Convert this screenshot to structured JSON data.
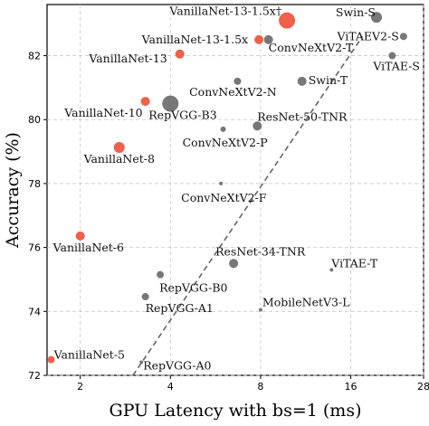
{
  "chart_data": {
    "type": "scatter",
    "xlabel": "GPU Latency with bs=1 (ms)",
    "ylabel": "Accuracy (%)",
    "x_scale": "log2",
    "xlim": [
      1.55,
      28
    ],
    "ylim": [
      72,
      83.6
    ],
    "xticks": [
      2,
      4,
      8,
      16,
      28
    ],
    "yticks": [
      72,
      74,
      76,
      78,
      80,
      82
    ],
    "grid": true,
    "colors": {
      "vanillanet": "#f0604a",
      "other": "#777777",
      "trend": "#666666"
    },
    "trend_line": {
      "x": [
        3.0,
        17.5
      ],
      "y": [
        72.0,
        82.6
      ]
    },
    "points": [
      {
        "label": "VanillaNet-13-1.5x†",
        "x": 9.8,
        "y": 83.1,
        "group": "vanillanet",
        "r": 9
      },
      {
        "label": "VanillaNet-13-1.5x",
        "x": 7.9,
        "y": 82.5,
        "group": "vanillanet",
        "r": 5
      },
      {
        "label": "VanillaNet-13",
        "x": 4.3,
        "y": 82.05,
        "group": "vanillanet",
        "r": 5
      },
      {
        "label": "VanillaNet-10",
        "x": 3.3,
        "y": 80.57,
        "group": "vanillanet",
        "r": 5
      },
      {
        "label": "VanillaNet-8",
        "x": 2.7,
        "y": 79.13,
        "group": "vanillanet",
        "r": 6
      },
      {
        "label": "VanillaNet-6",
        "x": 2.0,
        "y": 76.36,
        "group": "vanillanet",
        "r": 5
      },
      {
        "label": "VanillaNet-5",
        "x": 1.6,
        "y": 72.49,
        "group": "vanillanet",
        "r": 4
      },
      {
        "label": "Swin-S",
        "x": 19.5,
        "y": 83.2,
        "group": "other",
        "r": 6
      },
      {
        "label": "ConvNeXtV2-T",
        "x": 8.5,
        "y": 82.5,
        "group": "other",
        "r": 5
      },
      {
        "label": "ViTAEV2-S",
        "x": 24.0,
        "y": 82.6,
        "group": "other",
        "r": 4
      },
      {
        "label": "ViTAE-S",
        "x": 22.0,
        "y": 82.0,
        "group": "other",
        "r": 4
      },
      {
        "label": "Swin-T",
        "x": 11.0,
        "y": 81.2,
        "group": "other",
        "r": 5
      },
      {
        "label": "ConvNeXtV2-N",
        "x": 6.7,
        "y": 81.2,
        "group": "other",
        "r": 4
      },
      {
        "label": "RepVGG-B3",
        "x": 4.0,
        "y": 80.5,
        "group": "other",
        "r": 9
      },
      {
        "label": "ResNet-50-TNR",
        "x": 7.8,
        "y": 79.8,
        "group": "other",
        "r": 5
      },
      {
        "label": "ConvNeXtV2-P",
        "x": 6.0,
        "y": 79.7,
        "group": "other",
        "r": 3
      },
      {
        "label": "ConvNeXtV2-F",
        "x": 5.9,
        "y": 78.0,
        "group": "other",
        "r": 2
      },
      {
        "label": "ResNet-34-TNR",
        "x": 6.5,
        "y": 75.5,
        "group": "other",
        "r": 5
      },
      {
        "label": "ViTAE-T",
        "x": 13.8,
        "y": 75.3,
        "group": "other",
        "r": 2
      },
      {
        "label": "RepVGG-B0",
        "x": 3.7,
        "y": 75.15,
        "group": "other",
        "r": 4
      },
      {
        "label": "RepVGG-A1",
        "x": 3.3,
        "y": 74.46,
        "group": "other",
        "r": 4
      },
      {
        "label": "MobileNetV3-L",
        "x": 8.0,
        "y": 74.05,
        "group": "other",
        "r": 2
      },
      {
        "label": "RepVGG-A0",
        "x": 3.2,
        "y": 72.41,
        "group": "other",
        "r": 2
      }
    ]
  }
}
